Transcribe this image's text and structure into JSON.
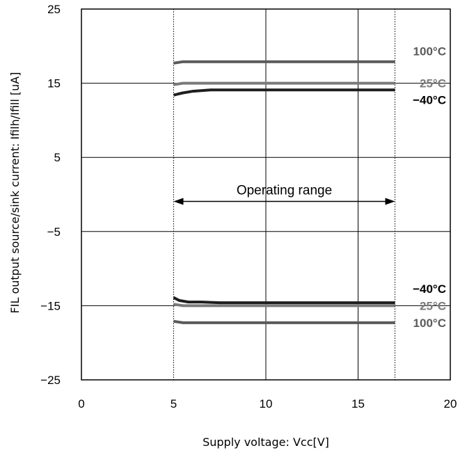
{
  "chart_data": {
    "type": "line",
    "xlabel": "Supply voltage: Vcc[V]",
    "ylabel": "FIL output source/sink current: Ifilh/Ifill [uA]",
    "xlim": [
      0,
      20
    ],
    "ylim": [
      -25,
      25
    ],
    "xticks": [
      0,
      5,
      10,
      15,
      20
    ],
    "yticks": [
      -25,
      -15,
      -5,
      5,
      15,
      25
    ],
    "x_tick_labels": [
      "0",
      "5",
      "10",
      "15",
      "20"
    ],
    "y_tick_labels": [
      "−25",
      "−15",
      "−5",
      "5",
      "15",
      "25"
    ],
    "grid": true,
    "series": [
      {
        "name": "100°C",
        "color": "#5a5a5a",
        "x": [
          5.0,
          5.5,
          6.0,
          17.0
        ],
        "y": [
          17.7,
          17.9,
          17.9,
          17.9
        ]
      },
      {
        "name": "25°C",
        "color": "#7a7a7a",
        "x": [
          5.0,
          5.5,
          6.0,
          17.0
        ],
        "y": [
          14.8,
          15.0,
          15.0,
          15.0
        ]
      },
      {
        "name": "−40°C",
        "color": "#1e1e1e",
        "x": [
          5.0,
          5.5,
          6.0,
          6.5,
          7.0,
          17.0
        ],
        "y": [
          13.4,
          13.7,
          13.9,
          14.0,
          14.1,
          14.1
        ]
      },
      {
        "name": "−40°C",
        "color": "#1e1e1e",
        "x": [
          5.0,
          5.3,
          5.8,
          6.5,
          7.5,
          17.0
        ],
        "y": [
          -13.9,
          -14.3,
          -14.5,
          -14.5,
          -14.6,
          -14.6
        ]
      },
      {
        "name": "25°C",
        "color": "#7a7a7a",
        "x": [
          5.0,
          5.5,
          17.0
        ],
        "y": [
          -14.8,
          -15.0,
          -15.0
        ]
      },
      {
        "name": "100°C",
        "color": "#5a5a5a",
        "x": [
          5.0,
          5.5,
          17.0
        ],
        "y": [
          -17.1,
          -17.3,
          -17.3
        ]
      }
    ],
    "operating_range": {
      "label": "Operating range",
      "x_start": 5,
      "x_end": 17,
      "y": 0
    }
  }
}
